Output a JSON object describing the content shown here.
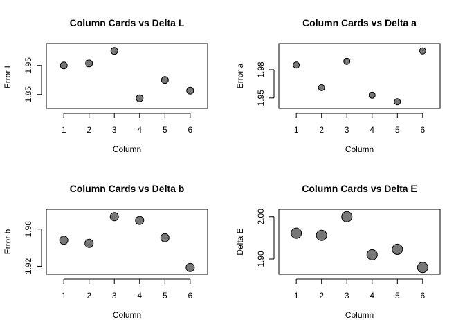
{
  "chart_data": [
    {
      "type": "scatter",
      "title": "Column Cards vs Delta L",
      "xlabel": "Column",
      "ylabel": "Error L",
      "x": [
        1,
        2,
        3,
        4,
        5,
        6
      ],
      "y": [
        1.95,
        1.957,
        2.0,
        1.837,
        1.9,
        1.863
      ],
      "xlim": [
        1,
        6
      ],
      "ylim": [
        1.825,
        2.0
      ],
      "xticks": [
        "1",
        "2",
        "3",
        "4",
        "5",
        "6"
      ],
      "yticks": [
        1.85,
        1.95
      ],
      "ytick_labels": [
        "1.85",
        "1.95"
      ],
      "point_color": "#777777",
      "grid": false
    },
    {
      "type": "scatter",
      "title": "Column Cards vs Delta a",
      "xlabel": "Column",
      "ylabel": "Error a",
      "x": [
        1,
        2,
        3,
        4,
        5,
        6
      ],
      "y": [
        1.985,
        1.961,
        1.989,
        1.953,
        1.946,
        2.0
      ],
      "xlim": [
        1,
        6
      ],
      "ylim": [
        1.946,
        2.0
      ],
      "xticks": [
        "1",
        "2",
        "3",
        "4",
        "5",
        "6"
      ],
      "yticks": [
        1.95,
        1.98
      ],
      "ytick_labels": [
        "1.95",
        "1.98"
      ],
      "point_color": "#777777",
      "grid": false
    },
    {
      "type": "scatter",
      "title": "Column Cards vs Delta b",
      "xlabel": "Column",
      "ylabel": "Error b",
      "x": [
        1,
        2,
        3,
        4,
        5,
        6
      ],
      "y": [
        1.962,
        1.957,
        2.0,
        1.994,
        1.966,
        1.918
      ],
      "xlim": [
        1,
        6
      ],
      "ylim": [
        1.918,
        2.0
      ],
      "xticks": [
        "1",
        "2",
        "3",
        "4",
        "5",
        "6"
      ],
      "yticks": [
        1.92,
        1.98
      ],
      "ytick_labels": [
        "1.92",
        "1.98"
      ],
      "point_color": "#777777",
      "grid": false
    },
    {
      "type": "scatter",
      "title": "Column Cards vs Delta E",
      "xlabel": "Column",
      "ylabel": "Delta E",
      "x": [
        1,
        2,
        3,
        4,
        5,
        6
      ],
      "y": [
        1.961,
        1.956,
        2.0,
        1.91,
        1.923,
        1.88
      ],
      "xlim": [
        1,
        6
      ],
      "ylim": [
        1.88,
        2.0
      ],
      "xticks": [
        "1",
        "2",
        "3",
        "4",
        "5",
        "6"
      ],
      "yticks": [
        1.9,
        2.0
      ],
      "ytick_labels": [
        "1.90",
        "2.00"
      ],
      "point_color": "#777777",
      "grid": false
    }
  ]
}
